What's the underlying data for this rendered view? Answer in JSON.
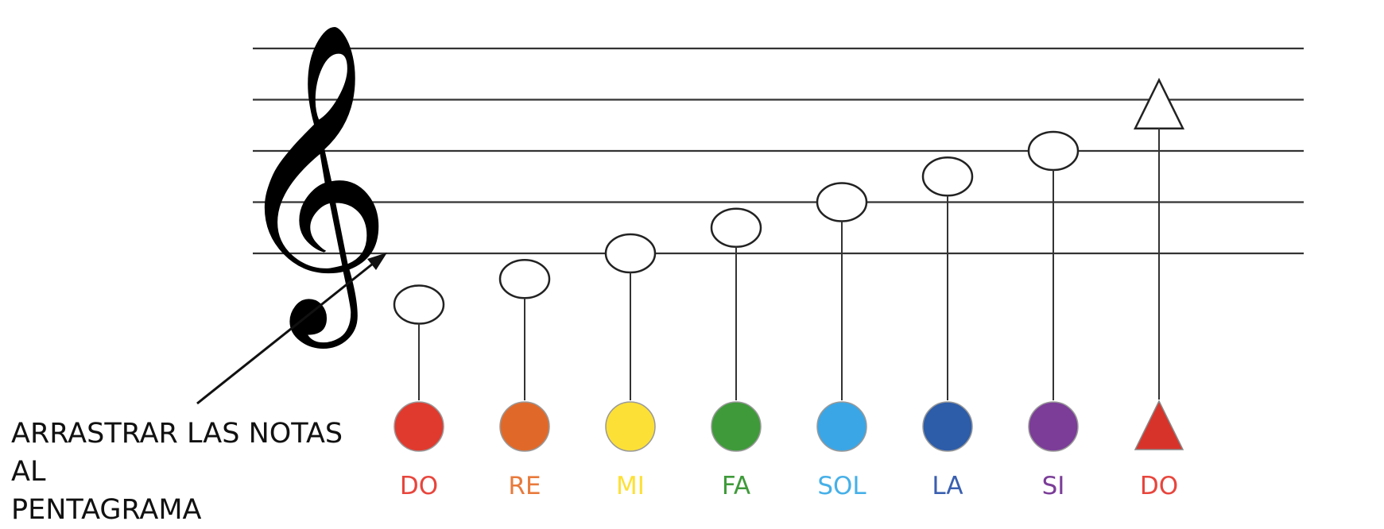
{
  "instruction": {
    "line1": "ARRASTRAR LAS NOTAS AL",
    "line2": "PENTAGRAMA"
  },
  "clef": {
    "glyph": "𝄞",
    "icon": "treble-clef-icon"
  },
  "staff": {
    "line_count": 5,
    "line_color": "#333333"
  },
  "notes": [
    {
      "label": "DO",
      "color": "#e03a2f",
      "shape": "circle",
      "text_color": "#e8453c",
      "staff_position": -2
    },
    {
      "label": "RE",
      "color": "#e0692a",
      "shape": "circle",
      "text_color": "#e87a3c",
      "staff_position": -1
    },
    {
      "label": "MI",
      "color": "#fde036",
      "shape": "circle",
      "text_color": "#fde036",
      "staff_position": 0
    },
    {
      "label": "FA",
      "color": "#3f9a3a",
      "shape": "circle",
      "text_color": "#3f9a3a",
      "staff_position": 1
    },
    {
      "label": "SOL",
      "color": "#3aa6e6",
      "shape": "circle",
      "text_color": "#46b0e8",
      "staff_position": 2
    },
    {
      "label": "LA",
      "color": "#2d5ca8",
      "shape": "circle",
      "text_color": "#3a5fb0",
      "staff_position": 3
    },
    {
      "label": "SI",
      "color": "#7b3d98",
      "shape": "circle",
      "text_color": "#7b3d98",
      "staff_position": 4
    },
    {
      "label": "DO",
      "color": "#d8332a",
      "shape": "triangle",
      "text_color": "#e8453c",
      "staff_position": 5
    }
  ]
}
